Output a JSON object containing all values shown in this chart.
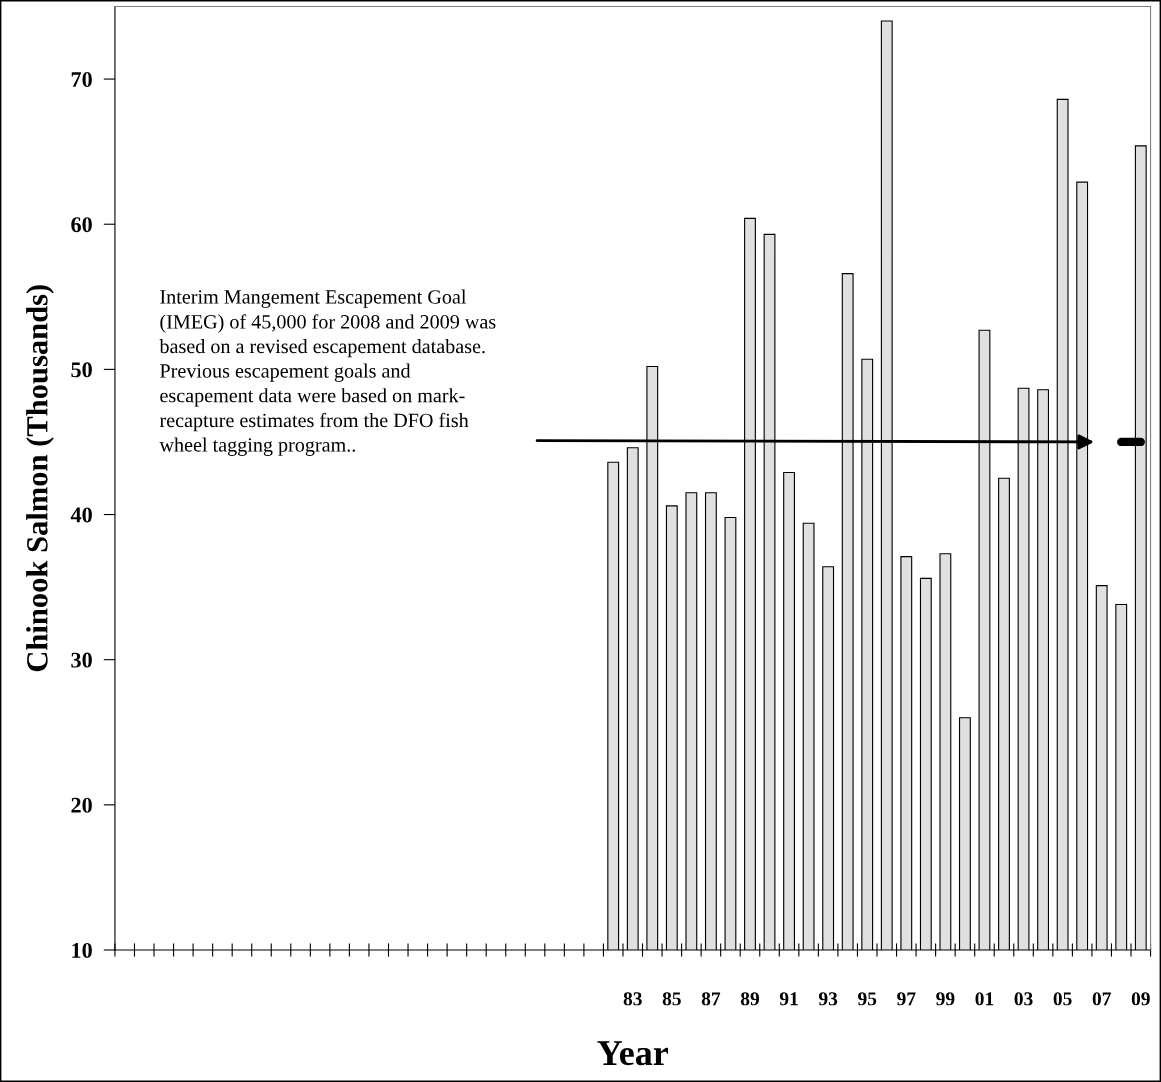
{
  "chart_data": {
    "type": "bar",
    "xlabel": "Year",
    "ylabel": "Chinook Salmon (Thousands)",
    "categories": [
      null,
      null,
      null,
      null,
      null,
      null,
      null,
      null,
      null,
      null,
      null,
      null,
      null,
      null,
      null,
      null,
      null,
      null,
      null,
      null,
      null,
      null,
      null,
      null,
      null,
      null,
      "83",
      null,
      "85",
      null,
      "87",
      null,
      "89",
      null,
      "91",
      null,
      "93",
      null,
      "95",
      null,
      "97",
      null,
      "99",
      null,
      "01",
      null,
      "03",
      null,
      "05",
      null,
      "07",
      null,
      "09"
    ],
    "series": [
      {
        "color": "#e0e0e0",
        "values": [
          null,
          null,
          null,
          null,
          null,
          null,
          null,
          null,
          null,
          null,
          null,
          null,
          null,
          null,
          null,
          null,
          null,
          null,
          null,
          null,
          null,
          null,
          null,
          null,
          null,
          43.6,
          44.6,
          50.2,
          40.6,
          41.5,
          41.5,
          39.8,
          60.4,
          59.3,
          42.9,
          39.4,
          36.4,
          56.6,
          50.7,
          74.0,
          37.1,
          35.6,
          37.3,
          26.0,
          52.7,
          42.5,
          48.7,
          48.6,
          68.6,
          62.9,
          35.1,
          33.8,
          65.4
        ]
      },
      {
        "type": "line",
        "color": "#000000",
        "values": [
          null,
          null,
          null,
          null,
          null,
          null,
          null,
          null,
          null,
          null,
          null,
          null,
          null,
          null,
          null,
          null,
          null,
          null,
          null,
          null,
          null,
          null,
          null,
          null,
          null,
          null,
          null,
          null,
          null,
          null,
          null,
          null,
          null,
          null,
          null,
          null,
          null,
          null,
          null,
          null,
          null,
          null,
          null,
          null,
          null,
          null,
          null,
          null,
          null,
          null,
          null,
          45,
          45
        ]
      }
    ],
    "ylim": [
      10,
      75
    ],
    "yticks": [
      10,
      20,
      30,
      40,
      50,
      60,
      70
    ],
    "grid": false,
    "legend": false,
    "annotations": [
      "Interim Mangement Escapement Goal\n(IMEG) of 45,000 for 2008 and 2009 was\nbased on a revised escapement database.\nPrevious escapement goals and\nescapement data were based on mark-\nrecapture estimates from the DFO fish\nwheel tagging program.."
    ]
  }
}
